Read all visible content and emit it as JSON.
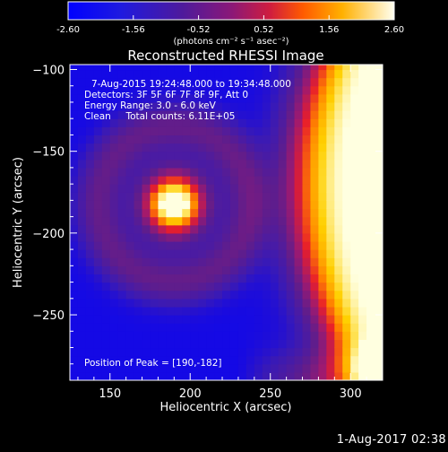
{
  "chart_data": {
    "type": "heatmap",
    "title": "Reconstructed RHESSI Image",
    "xlabel": "Heliocentric X (arcsec)",
    "ylabel": "Heliocentric Y (arcsec)",
    "xlim": [
      125,
      320
    ],
    "ylim": [
      -290,
      -97
    ],
    "xticks": [
      150,
      200,
      250,
      300
    ],
    "yticks": [
      -100,
      -150,
      -200,
      -250
    ],
    "colorbar": {
      "range": [
        -2.6,
        2.6
      ],
      "tick_labels": [
        "-2.60",
        "-1.56",
        "-0.52",
        "0.52",
        "1.56",
        "2.60"
      ],
      "units_label": "(photons cm⁻² s⁻¹ asec⁻²)",
      "colors": [
        "#0000ff",
        "#3a1ab5",
        "#5f1d8c",
        "#9e1a70",
        "#e81e2a",
        "#ff8000",
        "#ffd000",
        "#ffffe0"
      ]
    },
    "annotations": {
      "time_range": "7-Aug-2015 19:24:48.000 to 19:34:48.000",
      "detectors": "Detectors: 3F 5F 6F 7F 8F 9F, Att 0",
      "energy_range": "Energy Range: 3.0 - 6.0 keV",
      "clean_counts": "Clean     Total counts: 6.11E+05",
      "peak_position": "Position of Peak = [190,-182]"
    },
    "peak": {
      "x": 190,
      "y": -182
    }
  },
  "footer": {
    "timestamp": "1-Aug-2017 02:38"
  }
}
